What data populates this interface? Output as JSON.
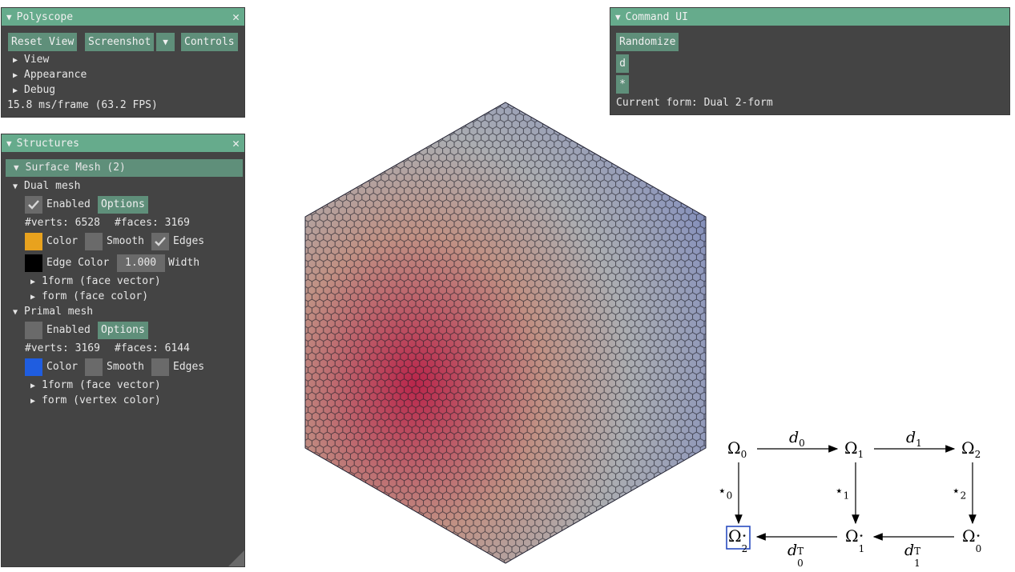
{
  "polyscope": {
    "title": "Polyscope",
    "close": "✕",
    "buttons": {
      "reset": "Reset View",
      "screenshot": "Screenshot",
      "dropdown": "▼",
      "controls": "Controls"
    },
    "items": [
      "View",
      "Appearance",
      "Debug"
    ],
    "fps": "15.8 ms/frame (63.2 FPS)"
  },
  "structures": {
    "title": "Structures",
    "close": "✕",
    "group": "Surface Mesh (2)",
    "dual": {
      "name": "Dual mesh",
      "enabled": "Enabled",
      "options": "Options",
      "verts_label": "#verts: 6528",
      "faces_label": "#faces: 3169",
      "color": "Color",
      "smooth": "Smooth",
      "edges": "Edges",
      "edge_color": "Edge Color",
      "width_value": "1.000",
      "width_label": "Width",
      "quantities": [
        "1form (face vector)",
        "form (face color)"
      ],
      "swatch_color": "#e8a21e",
      "edge_swatch_color": "#000000"
    },
    "primal": {
      "name": "Primal mesh",
      "enabled": "Enabled",
      "options": "Options",
      "verts_label": "#verts: 3169",
      "faces_label": "#faces: 6144",
      "color": "Color",
      "smooth": "Smooth",
      "edges": "Edges",
      "quantities": [
        "1form (face vector)",
        "form (vertex color)"
      ],
      "swatch_color": "#1f5de0"
    }
  },
  "command": {
    "title": "Command UI",
    "randomize": "Randomize",
    "d_button": "d",
    "star_button": "*",
    "current_form": "Current form: Dual 2-form"
  },
  "colors": {
    "title_bg": "#66ab8c",
    "panel_bg": "#444444",
    "button_bg": "#5f8f7a",
    "mesh_red": "#b9264b",
    "mesh_blue": "#5a6fb2",
    "selection": "#2a4cc0"
  },
  "diagram": {
    "omega": "Ω",
    "star": "⋆",
    "d": "d",
    "T": "T",
    "sub0": "0",
    "sub1": "1",
    "sub2": "2"
  }
}
